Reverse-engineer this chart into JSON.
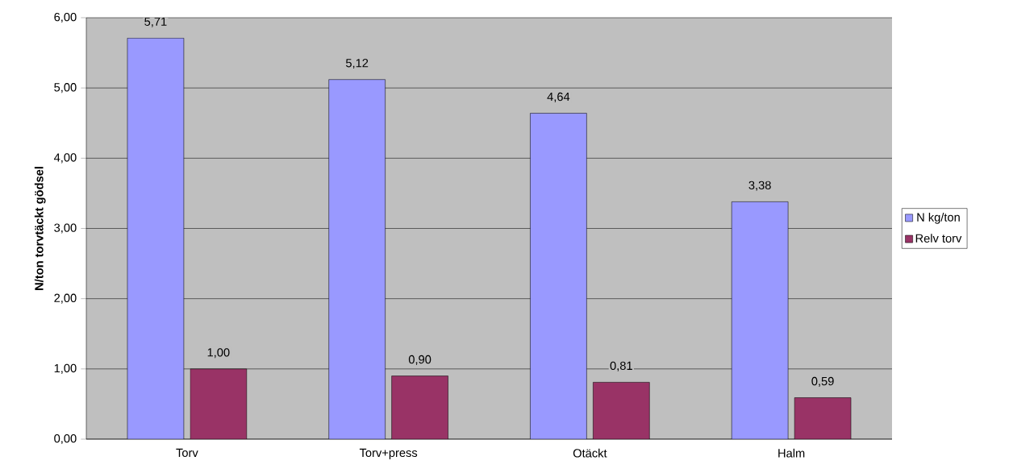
{
  "chart_data": {
    "type": "bar",
    "ylabel": "N/ton torvtäckt gödsel",
    "categories": [
      "Torv",
      "Torv+press",
      "Otäckt",
      "Halm"
    ],
    "series": [
      {
        "name": "N kg/ton",
        "color": "#9999ff",
        "values": [
          5.71,
          5.12,
          4.64,
          3.38
        ],
        "value_labels": [
          "5,71",
          "5,12",
          "4,64",
          "3,38"
        ]
      },
      {
        "name": "Relv torv",
        "color": "#993366",
        "values": [
          1.0,
          0.9,
          0.81,
          0.59
        ],
        "value_labels": [
          "1,00",
          "0,90",
          "0,81",
          "0,59"
        ]
      }
    ],
    "ylim": [
      0,
      6
    ],
    "yticks": [
      {
        "value": 0,
        "label": "0,00"
      },
      {
        "value": 1,
        "label": "1,00"
      },
      {
        "value": 2,
        "label": "2,00"
      },
      {
        "value": 3,
        "label": "3,00"
      },
      {
        "value": 4,
        "label": "4,00"
      },
      {
        "value": 5,
        "label": "5,00"
      },
      {
        "value": 6,
        "label": "6,00"
      }
    ],
    "grid": "y",
    "legend": "right"
  }
}
